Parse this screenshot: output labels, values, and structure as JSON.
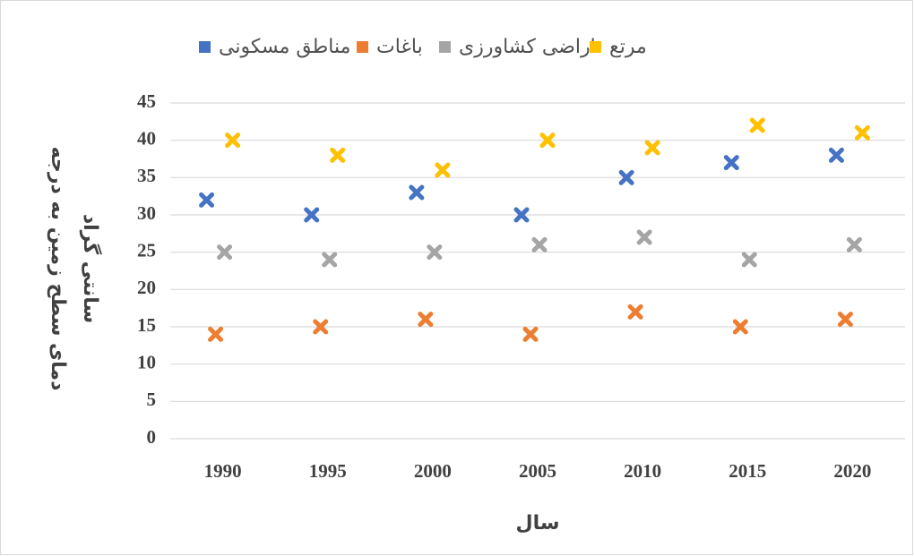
{
  "chart_data": {
    "type": "scatter",
    "x_label": "سال",
    "y_label": [
      "دمای سطح زمین به درجه",
      "سانتی گراد"
    ],
    "categories": [
      "1990",
      "1995",
      "2000",
      "2005",
      "2010",
      "2015",
      "2020"
    ],
    "series": [
      {
        "name": "مناطق مسکونی",
        "color": "#4472c4",
        "values": [
          32,
          30,
          33,
          30,
          35,
          37,
          38
        ]
      },
      {
        "name": "باغات",
        "color": "#ed7d31",
        "values": [
          14,
          15,
          16,
          14,
          17,
          15,
          16
        ]
      },
      {
        "name": "اراضی کشاورزی",
        "color": "#a5a5a5",
        "values": [
          25,
          24,
          25,
          26,
          27,
          24,
          26
        ]
      },
      {
        "name": "مرتع",
        "color": "#ffc000",
        "values": [
          40,
          38,
          36,
          40,
          39,
          42,
          41
        ]
      }
    ],
    "ylim": [
      0,
      45
    ],
    "yticks": [
      0,
      5,
      10,
      15,
      20,
      25,
      30,
      35,
      40,
      45
    ],
    "grid": true,
    "legend": "top"
  }
}
